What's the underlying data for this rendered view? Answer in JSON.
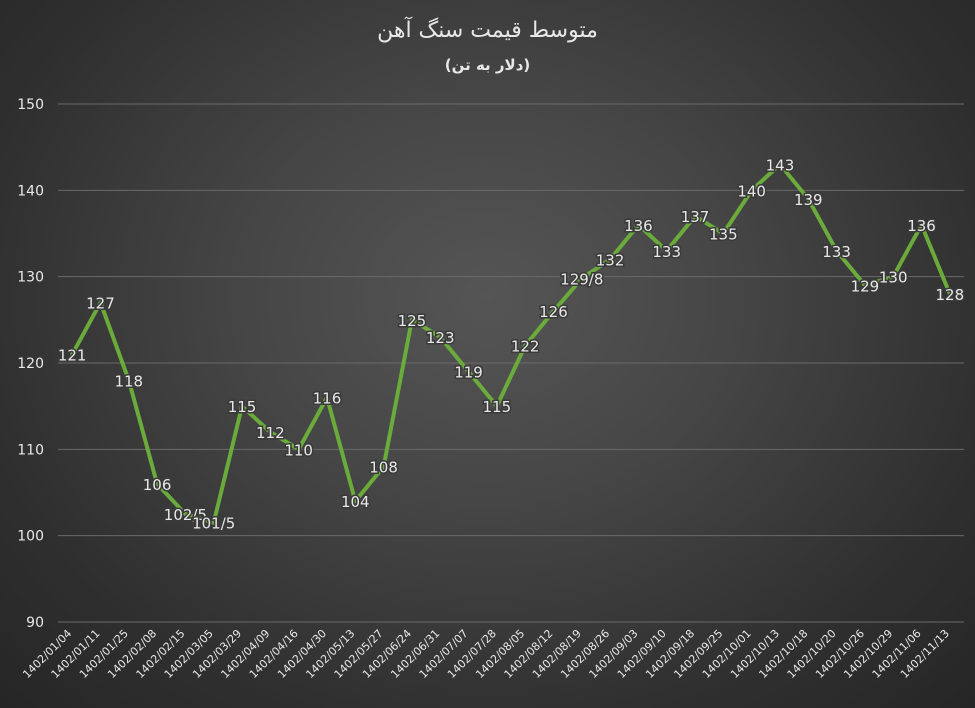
{
  "chart_data": {
    "type": "line",
    "title": "متوسط قیمت سنگ آهن",
    "subtitle": "(دلار به تن)",
    "categories": [
      "1402/01/04",
      "1402/01/11",
      "1402/01/25",
      "1402/02/08",
      "1402/02/15",
      "1402/03/05",
      "1402/03/29",
      "1402/04/09",
      "1402/04/16",
      "1402/04/30",
      "1402/05/13",
      "1402/05/27",
      "1402/06/24",
      "1402/06/31",
      "1402/07/07",
      "1402/07/28",
      "1402/08/05",
      "1402/08/12",
      "1402/08/19",
      "1402/08/26",
      "1402/09/03",
      "1402/09/10",
      "1402/09/18",
      "1402/09/25",
      "1402/10/01",
      "1402/10/13",
      "1402/10/18",
      "1402/10/20",
      "1402/10/26",
      "1402/10/29",
      "1402/11/06",
      "1402/11/13"
    ],
    "series": [
      {
        "values": [
          121,
          127,
          118,
          106,
          102.5,
          101.5,
          115,
          112,
          110,
          116,
          104,
          108,
          125,
          123,
          119,
          115,
          122,
          126,
          129.8,
          132,
          136,
          133,
          137,
          135,
          140,
          143,
          139,
          133,
          129,
          130,
          136,
          128
        ],
        "labels": [
          "121",
          "127",
          "118",
          "106",
          "102/5",
          "101/5",
          "115",
          "112",
          "110",
          "116",
          "104",
          "108",
          "125",
          "123",
          "119",
          "115",
          "122",
          "126",
          "129/8",
          "132",
          "136",
          "133",
          "137",
          "135",
          "140",
          "143",
          "139",
          "133",
          "129",
          "130",
          "136",
          "128"
        ],
        "color": "#6aab3b"
      }
    ],
    "ylim": [
      90,
      150
    ],
    "yticks": [
      "90",
      "100",
      "110",
      "120",
      "130",
      "140",
      "150"
    ],
    "grid": true,
    "legend": "none",
    "colors": {
      "line": "#6aab3b",
      "grid": "#6a6a6a",
      "text": "#e8e8e8"
    }
  }
}
